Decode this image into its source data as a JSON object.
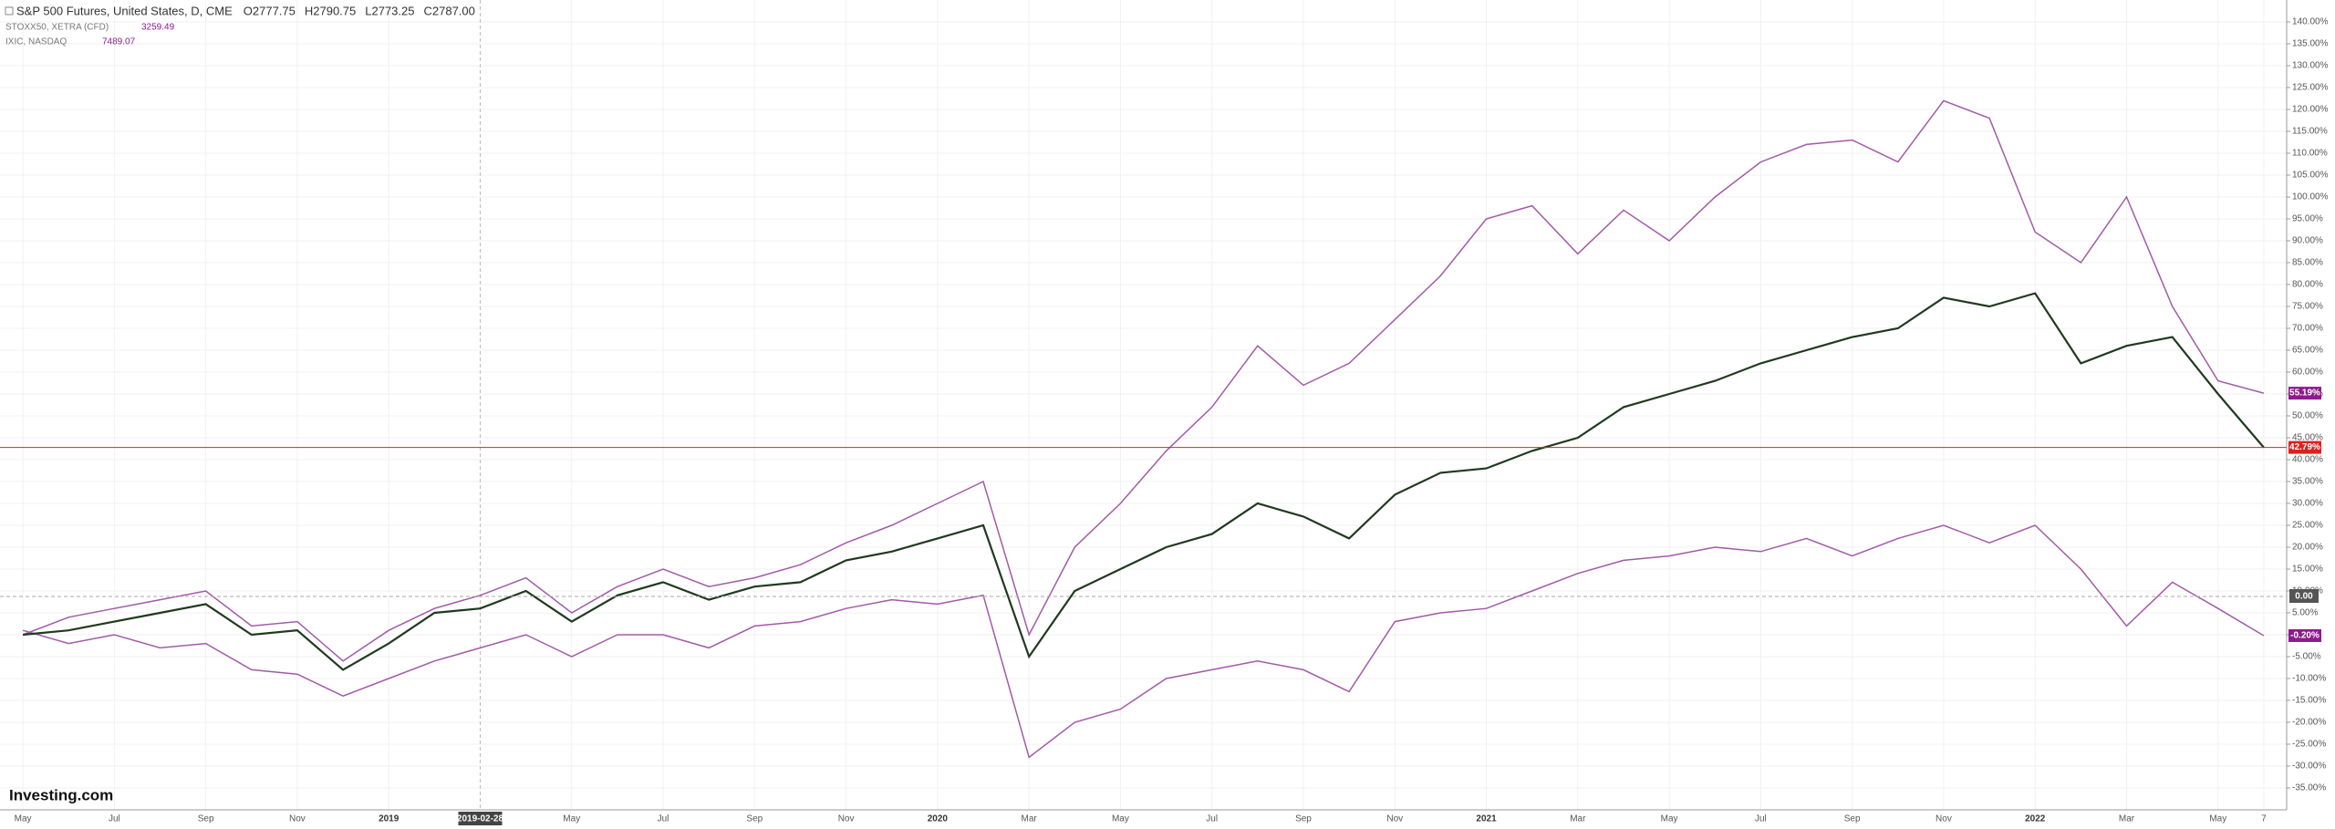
{
  "header": {
    "main": "S&P 500 Futures, United States, D, CME",
    "ohlc": [
      "O2777.75",
      "H2790.75",
      "L2773.25",
      "C2787.00"
    ],
    "rows": [
      {
        "name": "STOXX50, XETRA (CFD)",
        "value": "3259.49"
      },
      {
        "name": "IXIC, NASDAQ",
        "value": "7489.07"
      }
    ]
  },
  "logo": "Investing.com",
  "crosshair_price": "0.00",
  "chart_data": {
    "type": "line",
    "grid": true,
    "categories": [
      "May",
      null,
      "Jul",
      null,
      "Sep",
      null,
      "Nov",
      null,
      "2019",
      null,
      "2019-02-28",
      null,
      "May",
      null,
      "Jul",
      null,
      "Sep",
      null,
      "Nov",
      null,
      "2020",
      null,
      "Mar",
      null,
      "May",
      null,
      "Jul",
      null,
      "Sep",
      null,
      "Nov",
      null,
      "2021",
      null,
      "Mar",
      null,
      "May",
      null,
      "Jul",
      null,
      "Sep",
      null,
      "Nov",
      null,
      "2022",
      null,
      "Mar",
      null,
      "May",
      "7"
    ],
    "ylim": [
      -40,
      145
    ],
    "yticks": [
      {
        "value": -35,
        "label": "-35.00%"
      },
      {
        "value": -30,
        "label": "-30.00%"
      },
      {
        "value": -25,
        "label": "-25.00%"
      },
      {
        "value": -20,
        "label": "-20.00%"
      },
      {
        "value": -15,
        "label": "-15.00%"
      },
      {
        "value": -10,
        "label": "-10.00%"
      },
      {
        "value": -5,
        "label": "-5.00%"
      },
      {
        "value": 0,
        "label": "0.00%"
      },
      {
        "value": 5,
        "label": "5.00%"
      },
      {
        "value": 10,
        "label": "10.00%"
      },
      {
        "value": 15,
        "label": "15.00%"
      },
      {
        "value": 20,
        "label": "20.00%"
      },
      {
        "value": 25,
        "label": "25.00%"
      },
      {
        "value": 30,
        "label": "30.00%"
      },
      {
        "value": 35,
        "label": "35.00%"
      },
      {
        "value": 40,
        "label": "40.00%"
      },
      {
        "value": 45,
        "label": "45.00%"
      },
      {
        "value": 50,
        "label": "50.00%"
      },
      {
        "value": 55,
        "label": "55.00%"
      },
      {
        "value": 60,
        "label": "60.00%"
      },
      {
        "value": 65,
        "label": "65.00%"
      },
      {
        "value": 70,
        "label": "70.00%"
      },
      {
        "value": 75,
        "label": "75.00%"
      },
      {
        "value": 80,
        "label": "80.00%"
      },
      {
        "value": 85,
        "label": "85.00%"
      },
      {
        "value": 90,
        "label": "90.00%"
      },
      {
        "value": 95,
        "label": "95.00%"
      },
      {
        "value": 100,
        "label": "100.00%"
      },
      {
        "value": 105,
        "label": "105.00%"
      },
      {
        "value": 110,
        "label": "110.00%"
      },
      {
        "value": 115,
        "label": "115.00%"
      },
      {
        "value": 120,
        "label": "120.00%"
      },
      {
        "value": 125,
        "label": "125.00%"
      },
      {
        "value": 130,
        "label": "130.00%"
      },
      {
        "value": 135,
        "label": "135.00%"
      },
      {
        "value": 140,
        "label": "140.00%"
      }
    ],
    "series": [
      {
        "name": "IXIC, NASDAQ",
        "color": "#a25aa8",
        "last_label": "55.19%",
        "label_color": "#8e1b8e",
        "values": [
          0,
          4,
          6,
          8,
          10,
          2,
          3,
          -6,
          1,
          6,
          9,
          13,
          5,
          11,
          15,
          11,
          13,
          16,
          21,
          25,
          30,
          35,
          0,
          20,
          30,
          42,
          52,
          66,
          57,
          62,
          72,
          82,
          95,
          98,
          87,
          97,
          90,
          100,
          108,
          112,
          113,
          108,
          122,
          118,
          92,
          85,
          100,
          75,
          58,
          55.19
        ]
      },
      {
        "name": "STOXX50, XETRA (CFD)",
        "color": "#a25aa8",
        "last_label": "-0.20%",
        "label_color": "#8e1b8e",
        "values": [
          1,
          -2,
          0,
          -3,
          -2,
          -8,
          -9,
          -14,
          -10,
          -6,
          -3,
          0,
          -5,
          0,
          0,
          -3,
          2,
          3,
          6,
          8,
          7,
          9,
          -28,
          -20,
          -17,
          -10,
          -8,
          -6,
          -8,
          -13,
          3,
          5,
          6,
          10,
          14,
          17,
          18,
          20,
          19,
          22,
          18,
          22,
          25,
          21,
          25,
          15,
          2,
          12,
          6,
          -0.2
        ]
      },
      {
        "name": "S&P 500 Futures, United States, D, CME",
        "color": "#1f3a1f",
        "last_label": "42.79%",
        "label_color": "#e0201e",
        "values": [
          0,
          1,
          3,
          5,
          7,
          0,
          1,
          -8,
          -2,
          5,
          6,
          10,
          3,
          9,
          12,
          8,
          11,
          12,
          17,
          19,
          22,
          25,
          -5,
          10,
          15,
          20,
          23,
          30,
          27,
          22,
          32,
          37,
          38,
          42,
          45,
          52,
          55,
          58,
          62,
          65,
          68,
          70,
          77,
          75,
          78,
          62,
          66,
          68,
          55,
          42.79
        ]
      }
    ]
  }
}
